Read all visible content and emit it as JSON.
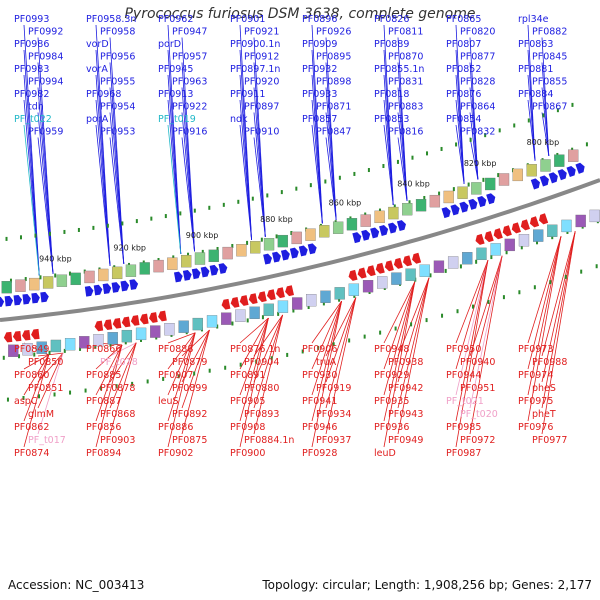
{
  "title": "Pyrococcus furiosus DSM 3638, complete genome",
  "footer": {
    "accession": "Accession: NC_003413",
    "summary": "Topology: circular; Length: 1,908,256 bp; Genes: 2,177"
  },
  "colors": {
    "forward_gene": "#1e1ee0",
    "reverse_gene": "#e01e1e",
    "trna_forward": "#22b8c8",
    "trna_reverse": "#f0a0c8",
    "backbone": "#888888",
    "tick": "#2a8a2a"
  },
  "kbp_ticks": [
    {
      "label": "940 kbp"
    },
    {
      "label": "920 kbp"
    },
    {
      "label": "900 kbp"
    },
    {
      "label": "880 kbp"
    },
    {
      "label": "860 kbp"
    },
    {
      "label": "840 kbp"
    },
    {
      "label": "820 kbp"
    },
    {
      "label": "800 kbp"
    }
  ],
  "top_labels": [
    "PF0993",
    "PF0992",
    "PF0986",
    "PF0984",
    "PF0983",
    "PF0994",
    "PF0982",
    "tdh",
    "PF_t022",
    "PF0959",
    "PF0958.3n",
    "PF0958",
    "vorD",
    "PF0956",
    "vorA",
    "PF0955",
    "PF0968",
    "PF0954",
    "porA",
    "PF0953",
    "PF0962",
    "PF0947",
    "porD",
    "PF0957",
    "PF0945",
    "PF0963",
    "PF0913",
    "PF0922",
    "PF_t019",
    "PF0916",
    "PF0901",
    "PF0921",
    "PF0900.1n",
    "PF0912",
    "PF0897.1n",
    "PF0920",
    "PF0911",
    "PF0897",
    "ndk",
    "PF0910",
    "PF0896",
    "PF0926",
    "PF0909",
    "PF0895",
    "PF0932",
    "PF0898",
    "PF0933",
    "PF0871",
    "PF0857",
    "PF0847",
    "PF0826",
    "PF0811",
    "PF0889",
    "PF0870",
    "PF0855.1n",
    "PF0831",
    "PF0818",
    "PF0883",
    "PF0853",
    "PF0816",
    "PF0865",
    "PF0820",
    "PF0807",
    "PF0877",
    "PF0852",
    "PF0828",
    "PF0876",
    "PF0864",
    "PF0854",
    "PF0832",
    "rpl34e",
    "PF0882",
    "PF0863",
    "PF0845",
    "PF0881",
    "PF0855",
    "PF0884",
    "PF0867"
  ],
  "bottom_labels": [
    "PF0849",
    "PF0850",
    "PF0860",
    "PF0851",
    "aspC",
    "glmM",
    "PF0862",
    "PF_t017",
    "PF0874",
    "PF0866",
    "PF_t018",
    "PF0885",
    "PF0878",
    "PF0887",
    "PF0868",
    "PF0856",
    "PF0903",
    "PF0894",
    "PF0888",
    "PF0879",
    "PF0907",
    "PF0899",
    "leuS",
    "PF0892",
    "PF0886",
    "PF0875",
    "PF0902",
    "PF0876.1n",
    "PF0904",
    "PF0891",
    "PF0880",
    "PF0905",
    "PF0893",
    "PF0908",
    "PF0884.1n",
    "PF0900",
    "PF0906",
    "truA",
    "PF0930",
    "PF0919",
    "PF0941",
    "PF0934",
    "PF0946",
    "PF0937",
    "PF0928",
    "PF0948",
    "PF0938",
    "PF0929",
    "PF0942",
    "PF0935",
    "PF0943",
    "PF0936",
    "PF0949",
    "leuD",
    "PF0950",
    "PF0940",
    "PF0944",
    "PF0951",
    "PF_t021",
    "PF_t020",
    "PF0985",
    "PF0972",
    "PF0987",
    "PF0973",
    "PF0988",
    "PF0974",
    "pheS",
    "PF0975",
    "pheT",
    "PF0976",
    "PF0977"
  ]
}
